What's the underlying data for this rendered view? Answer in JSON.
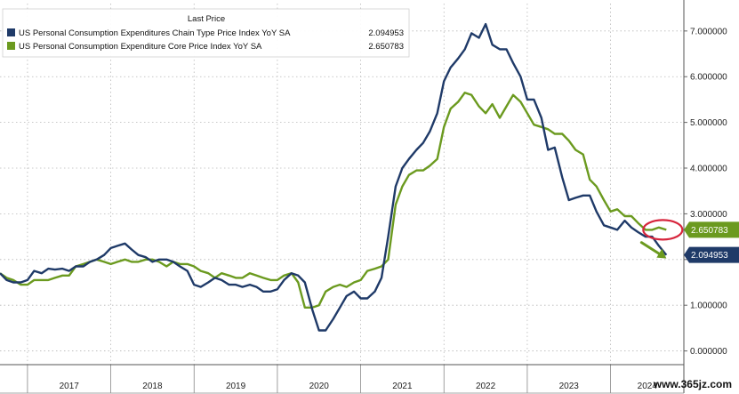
{
  "chart_data": {
    "type": "line",
    "legend": {
      "header": "Last Price",
      "placement": "top-left"
    },
    "series": [
      {
        "name": "US Personal Consumption Expenditures Chain Type Price Index YoY SA",
        "last_label": "2.094953",
        "color": "#1f3a68",
        "values": [
          [
            2016.67,
            1.7
          ],
          [
            2016.75,
            1.55
          ],
          [
            2016.83,
            1.5
          ],
          [
            2016.92,
            1.5
          ],
          [
            2017.0,
            1.55
          ],
          [
            2017.08,
            1.75
          ],
          [
            2017.17,
            1.7
          ],
          [
            2017.25,
            1.8
          ],
          [
            2017.33,
            1.78
          ],
          [
            2017.42,
            1.8
          ],
          [
            2017.5,
            1.75
          ],
          [
            2017.58,
            1.85
          ],
          [
            2017.67,
            1.85
          ],
          [
            2017.75,
            1.95
          ],
          [
            2017.83,
            2.0
          ],
          [
            2017.92,
            2.1
          ],
          [
            2018.0,
            2.25
          ],
          [
            2018.08,
            2.3
          ],
          [
            2018.17,
            2.35
          ],
          [
            2018.25,
            2.22
          ],
          [
            2018.33,
            2.1
          ],
          [
            2018.42,
            2.05
          ],
          [
            2018.5,
            1.95
          ],
          [
            2018.58,
            2.0
          ],
          [
            2018.67,
            2.0
          ],
          [
            2018.75,
            1.95
          ],
          [
            2018.83,
            1.85
          ],
          [
            2018.92,
            1.75
          ],
          [
            2019.0,
            1.45
          ],
          [
            2019.08,
            1.4
          ],
          [
            2019.17,
            1.5
          ],
          [
            2019.25,
            1.6
          ],
          [
            2019.33,
            1.55
          ],
          [
            2019.42,
            1.45
          ],
          [
            2019.5,
            1.45
          ],
          [
            2019.58,
            1.4
          ],
          [
            2019.67,
            1.45
          ],
          [
            2019.75,
            1.4
          ],
          [
            2019.83,
            1.3
          ],
          [
            2019.92,
            1.3
          ],
          [
            2020.0,
            1.35
          ],
          [
            2020.08,
            1.55
          ],
          [
            2020.17,
            1.7
          ],
          [
            2020.25,
            1.65
          ],
          [
            2020.33,
            1.5
          ],
          [
            2020.42,
            0.9
          ],
          [
            2020.5,
            0.45
          ],
          [
            2020.58,
            0.45
          ],
          [
            2020.67,
            0.7
          ],
          [
            2020.75,
            0.95
          ],
          [
            2020.83,
            1.2
          ],
          [
            2020.92,
            1.3
          ],
          [
            2021.0,
            1.15
          ],
          [
            2021.08,
            1.15
          ],
          [
            2021.17,
            1.3
          ],
          [
            2021.25,
            1.6
          ],
          [
            2021.33,
            2.5
          ],
          [
            2021.42,
            3.6
          ],
          [
            2021.5,
            4.0
          ],
          [
            2021.58,
            4.2
          ],
          [
            2021.67,
            4.4
          ],
          [
            2021.75,
            4.55
          ],
          [
            2021.83,
            4.8
          ],
          [
            2021.92,
            5.2
          ],
          [
            2022.0,
            5.9
          ],
          [
            2022.08,
            6.2
          ],
          [
            2022.17,
            6.4
          ],
          [
            2022.25,
            6.6
          ],
          [
            2022.33,
            6.95
          ],
          [
            2022.42,
            6.85
          ],
          [
            2022.5,
            7.15
          ],
          [
            2022.58,
            6.7
          ],
          [
            2022.67,
            6.6
          ],
          [
            2022.75,
            6.6
          ],
          [
            2022.83,
            6.3
          ],
          [
            2022.92,
            6.0
          ],
          [
            2023.0,
            5.5
          ],
          [
            2023.08,
            5.5
          ],
          [
            2023.17,
            5.1
          ],
          [
            2023.25,
            4.4
          ],
          [
            2023.33,
            4.45
          ],
          [
            2023.42,
            3.8
          ],
          [
            2023.5,
            3.3
          ],
          [
            2023.58,
            3.35
          ],
          [
            2023.67,
            3.4
          ],
          [
            2023.75,
            3.4
          ],
          [
            2023.83,
            3.05
          ],
          [
            2023.92,
            2.75
          ],
          [
            2024.0,
            2.7
          ],
          [
            2024.08,
            2.65
          ],
          [
            2024.17,
            2.85
          ],
          [
            2024.25,
            2.7
          ],
          [
            2024.33,
            2.6
          ],
          [
            2024.42,
            2.5
          ],
          [
            2024.5,
            2.5
          ],
          [
            2024.58,
            2.3
          ],
          [
            2024.67,
            2.1
          ]
        ]
      },
      {
        "name": "US Personal Consumption Expenditure Core Price Index YoY SA",
        "last_label": "2.650783",
        "color": "#6b9a1f",
        "values": [
          [
            2016.67,
            1.7
          ],
          [
            2016.75,
            1.6
          ],
          [
            2016.83,
            1.55
          ],
          [
            2016.92,
            1.45
          ],
          [
            2017.0,
            1.45
          ],
          [
            2017.08,
            1.55
          ],
          [
            2017.17,
            1.55
          ],
          [
            2017.25,
            1.55
          ],
          [
            2017.33,
            1.6
          ],
          [
            2017.42,
            1.65
          ],
          [
            2017.5,
            1.65
          ],
          [
            2017.58,
            1.85
          ],
          [
            2017.67,
            1.9
          ],
          [
            2017.75,
            1.95
          ],
          [
            2017.83,
            2.0
          ],
          [
            2017.92,
            1.95
          ],
          [
            2018.0,
            1.9
          ],
          [
            2018.08,
            1.95
          ],
          [
            2018.17,
            2.0
          ],
          [
            2018.25,
            1.95
          ],
          [
            2018.33,
            1.95
          ],
          [
            2018.42,
            2.0
          ],
          [
            2018.5,
            2.0
          ],
          [
            2018.58,
            1.95
          ],
          [
            2018.67,
            1.85
          ],
          [
            2018.75,
            1.95
          ],
          [
            2018.83,
            1.9
          ],
          [
            2018.92,
            1.9
          ],
          [
            2019.0,
            1.85
          ],
          [
            2019.08,
            1.75
          ],
          [
            2019.17,
            1.7
          ],
          [
            2019.25,
            1.6
          ],
          [
            2019.33,
            1.7
          ],
          [
            2019.42,
            1.65
          ],
          [
            2019.5,
            1.6
          ],
          [
            2019.58,
            1.6
          ],
          [
            2019.67,
            1.7
          ],
          [
            2019.75,
            1.65
          ],
          [
            2019.83,
            1.6
          ],
          [
            2019.92,
            1.55
          ],
          [
            2020.0,
            1.55
          ],
          [
            2020.08,
            1.65
          ],
          [
            2020.17,
            1.7
          ],
          [
            2020.25,
            1.5
          ],
          [
            2020.33,
            0.95
          ],
          [
            2020.42,
            0.95
          ],
          [
            2020.5,
            1.0
          ],
          [
            2020.58,
            1.3
          ],
          [
            2020.67,
            1.4
          ],
          [
            2020.75,
            1.45
          ],
          [
            2020.83,
            1.4
          ],
          [
            2020.92,
            1.5
          ],
          [
            2021.0,
            1.55
          ],
          [
            2021.08,
            1.75
          ],
          [
            2021.17,
            1.8
          ],
          [
            2021.25,
            1.85
          ],
          [
            2021.33,
            2.0
          ],
          [
            2021.42,
            3.2
          ],
          [
            2021.5,
            3.6
          ],
          [
            2021.58,
            3.85
          ],
          [
            2021.67,
            3.95
          ],
          [
            2021.75,
            3.95
          ],
          [
            2021.83,
            4.05
          ],
          [
            2021.92,
            4.2
          ],
          [
            2022.0,
            4.9
          ],
          [
            2022.08,
            5.3
          ],
          [
            2022.17,
            5.45
          ],
          [
            2022.25,
            5.65
          ],
          [
            2022.33,
            5.6
          ],
          [
            2022.42,
            5.35
          ],
          [
            2022.5,
            5.2
          ],
          [
            2022.58,
            5.4
          ],
          [
            2022.67,
            5.1
          ],
          [
            2022.75,
            5.35
          ],
          [
            2022.83,
            5.6
          ],
          [
            2022.92,
            5.45
          ],
          [
            2023.0,
            5.2
          ],
          [
            2023.08,
            4.95
          ],
          [
            2023.17,
            4.9
          ],
          [
            2023.25,
            4.85
          ],
          [
            2023.33,
            4.75
          ],
          [
            2023.42,
            4.75
          ],
          [
            2023.5,
            4.6
          ],
          [
            2023.58,
            4.4
          ],
          [
            2023.67,
            4.3
          ],
          [
            2023.75,
            3.75
          ],
          [
            2023.83,
            3.6
          ],
          [
            2023.92,
            3.3
          ],
          [
            2024.0,
            3.05
          ],
          [
            2024.08,
            3.1
          ],
          [
            2024.17,
            2.95
          ],
          [
            2024.25,
            2.95
          ],
          [
            2024.33,
            2.8
          ],
          [
            2024.42,
            2.65
          ],
          [
            2024.5,
            2.65
          ],
          [
            2024.58,
            2.7
          ],
          [
            2024.67,
            2.65
          ]
        ]
      }
    ],
    "xticks": [
      "2017",
      "2018",
      "2019",
      "2020",
      "2021",
      "2022",
      "2023",
      "2024"
    ],
    "yticks": [
      "0.000000",
      "1.000000",
      "2.000000",
      "3.000000",
      "4.000000",
      "5.000000",
      "6.000000",
      "7.000000"
    ],
    "xlim": [
      2016.67,
      2024.88
    ],
    "ylim": [
      -0.3,
      7.6
    ],
    "grid": true,
    "annotations": {
      "circle_color": "#d7263d",
      "arrow_color": "#6b9a1f"
    }
  },
  "watermark": "www.365jz.com"
}
